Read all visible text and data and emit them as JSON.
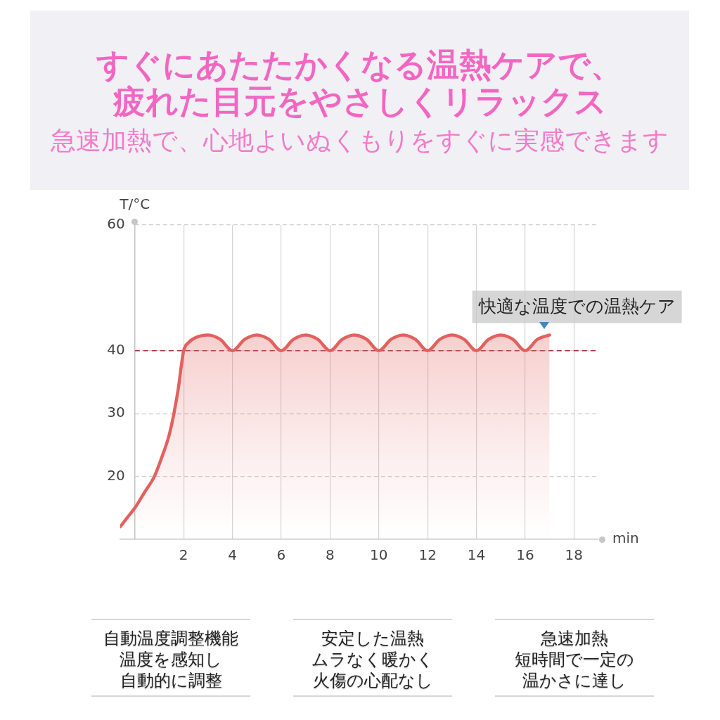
{
  "chart_data": {
    "type": "area",
    "title": "すぐにあたたかくなる温熱ケアで、疲れた目元をやさしくリラックス",
    "subtitle": "急速加熱で、心地よいぬくもりをすぐに実感できます",
    "xlabel": "min",
    "ylabel": "T/°C",
    "x": [
      -0.6,
      -0.3,
      0,
      0.4,
      0.8,
      1.1,
      1.4,
      1.6,
      1.8,
      1.9,
      2,
      2.2,
      2.5,
      3,
      3.5,
      4,
      4.5,
      5,
      5.5,
      6,
      6.5,
      7,
      7.5,
      8,
      8.5,
      9,
      9.5,
      10,
      10.5,
      11,
      11.5,
      12,
      12.5,
      13,
      13.5,
      14,
      14.5,
      15,
      15.5,
      16,
      16.5,
      17
    ],
    "values": [
      12,
      13.5,
      15,
      17.5,
      20,
      23,
      26.5,
      30,
      34.5,
      37.5,
      40,
      41.3,
      42.1,
      42.5,
      41.8,
      40,
      41.8,
      42.5,
      41.8,
      40,
      41.8,
      42.5,
      41.8,
      40,
      41.8,
      42.5,
      41.8,
      40,
      41.8,
      42.5,
      41.8,
      40,
      41.8,
      42.5,
      41.8,
      40,
      41.8,
      42.5,
      41.8,
      40,
      41.8,
      42.5
    ],
    "color": "#e2615e",
    "marker": "none",
    "grid": true,
    "xlim": [
      -0.6,
      19
    ],
    "xticks": [
      2,
      4,
      6,
      8,
      10,
      12,
      14,
      16,
      18
    ],
    "ylim": [
      10,
      60
    ],
    "yticks": [
      20,
      30,
      40,
      60
    ],
    "ref_lines": [
      {
        "axis": "y",
        "value": 40,
        "color": "#a03c3a",
        "line_style": "dashed"
      }
    ],
    "annotations": [
      {
        "text": "快適な温度での温熱ケア",
        "x": 17,
        "y": 42.5
      },
      "自動温度調整機能",
      "温度を感知し自動的に調整",
      "安定した温熱",
      "ムラなく暖かく火傷の心配なし",
      "急速加熱",
      "短時間で一定の温かさに達し"
    ]
  }
}
